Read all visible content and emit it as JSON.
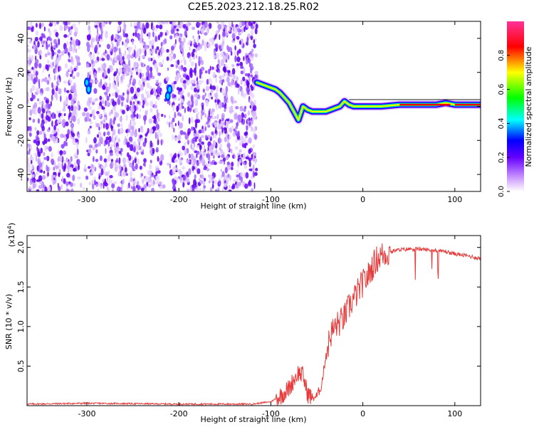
{
  "title": "C2E5.2023.212.18.25.R02",
  "chart_data": [
    {
      "type": "heatmap",
      "xlabel": "Height of straight line (km)",
      "ylabel": "Frequency (Hz)",
      "xlim": [
        -365,
        128
      ],
      "ylim": [
        -50,
        50
      ],
      "x_ticks": [
        -300,
        -200,
        -100,
        0,
        100
      ],
      "x_tick_labels": [
        "-300",
        "-200",
        "-100",
        "0",
        "100"
      ],
      "y_ticks": [
        40,
        20,
        0,
        -20,
        -40
      ],
      "y_tick_labels": [
        "40",
        "20",
        "0",
        "-20",
        "-40"
      ],
      "colorbar": {
        "label": "Normalized spectral amplitude",
        "range": [
          0,
          1
        ],
        "ticks": [
          0.0,
          0.2,
          0.4,
          0.6,
          0.8
        ],
        "tick_labels": [
          "0.0",
          "0.2",
          "0.4",
          "0.6",
          "0.8"
        ],
        "colors": [
          "#ffffff",
          "#cc99ff",
          "#6600ff",
          "#0000ff",
          "#00ffff",
          "#00ff00",
          "#ffff00",
          "#ff0000",
          "#ff3399"
        ]
      },
      "noise_region_x": [
        -365,
        -115
      ],
      "doppler_trace": {
        "x": [
          -115,
          -105,
          -100,
          -95,
          -90,
          -85,
          -80,
          -75,
          -70,
          -65,
          -60,
          -55,
          -50,
          -45,
          -40,
          -35,
          -30,
          -25,
          -20,
          -15,
          -10,
          -5,
          0,
          20,
          40,
          60,
          80,
          90,
          100,
          128
        ],
        "y": [
          14,
          12,
          11,
          10,
          8,
          5,
          2,
          -3,
          -8,
          0,
          -2,
          -3,
          -3,
          -3,
          -3,
          -2,
          -1,
          0,
          3,
          1,
          0,
          0,
          0,
          0,
          1,
          1,
          1,
          2,
          1,
          1
        ]
      }
    },
    {
      "type": "line",
      "xlabel": "Height of straight line (km)",
      "ylabel": "SNR (10 * v/v)",
      "y_exponent_label": "(x10",
      "y_exponent": "4",
      "y_exponent_close": ")",
      "xlim": [
        -365,
        128
      ],
      "ylim": [
        0,
        2.15
      ],
      "x_ticks": [
        -300,
        -200,
        -100,
        0,
        100
      ],
      "x_tick_labels": [
        "-300",
        "-200",
        "-100",
        "0",
        "100"
      ],
      "y_ticks": [
        0.5,
        1.0,
        1.5,
        2.0
      ],
      "y_tick_labels": [
        "0.5",
        "1.0",
        "1.5",
        "2.0"
      ],
      "color": "#e83a3a",
      "series": [
        {
          "x": [
            -365,
            -300,
            -200,
            -120,
            -100,
            -90,
            -80,
            -75,
            -70,
            -65,
            -60,
            -55,
            -50,
            -45,
            -40,
            -35,
            -30,
            -25,
            -20,
            -15,
            -10,
            -5,
            0,
            5,
            10,
            15,
            20,
            25,
            30,
            35,
            40,
            50,
            60,
            70,
            80,
            90,
            95,
            100,
            110,
            120,
            128
          ],
          "y": [
            0.02,
            0.03,
            0.02,
            0.02,
            0.05,
            0.12,
            0.22,
            0.33,
            0.42,
            0.38,
            0.15,
            0.1,
            0.12,
            0.25,
            0.65,
            0.9,
            1.0,
            1.05,
            1.12,
            1.25,
            1.35,
            1.45,
            1.55,
            1.62,
            1.75,
            1.85,
            1.9,
            1.92,
            1.94,
            1.96,
            1.97,
            1.98,
            1.98,
            1.97,
            1.96,
            1.95,
            1.93,
            1.92,
            1.9,
            1.88,
            1.86
          ]
        }
      ]
    }
  ]
}
